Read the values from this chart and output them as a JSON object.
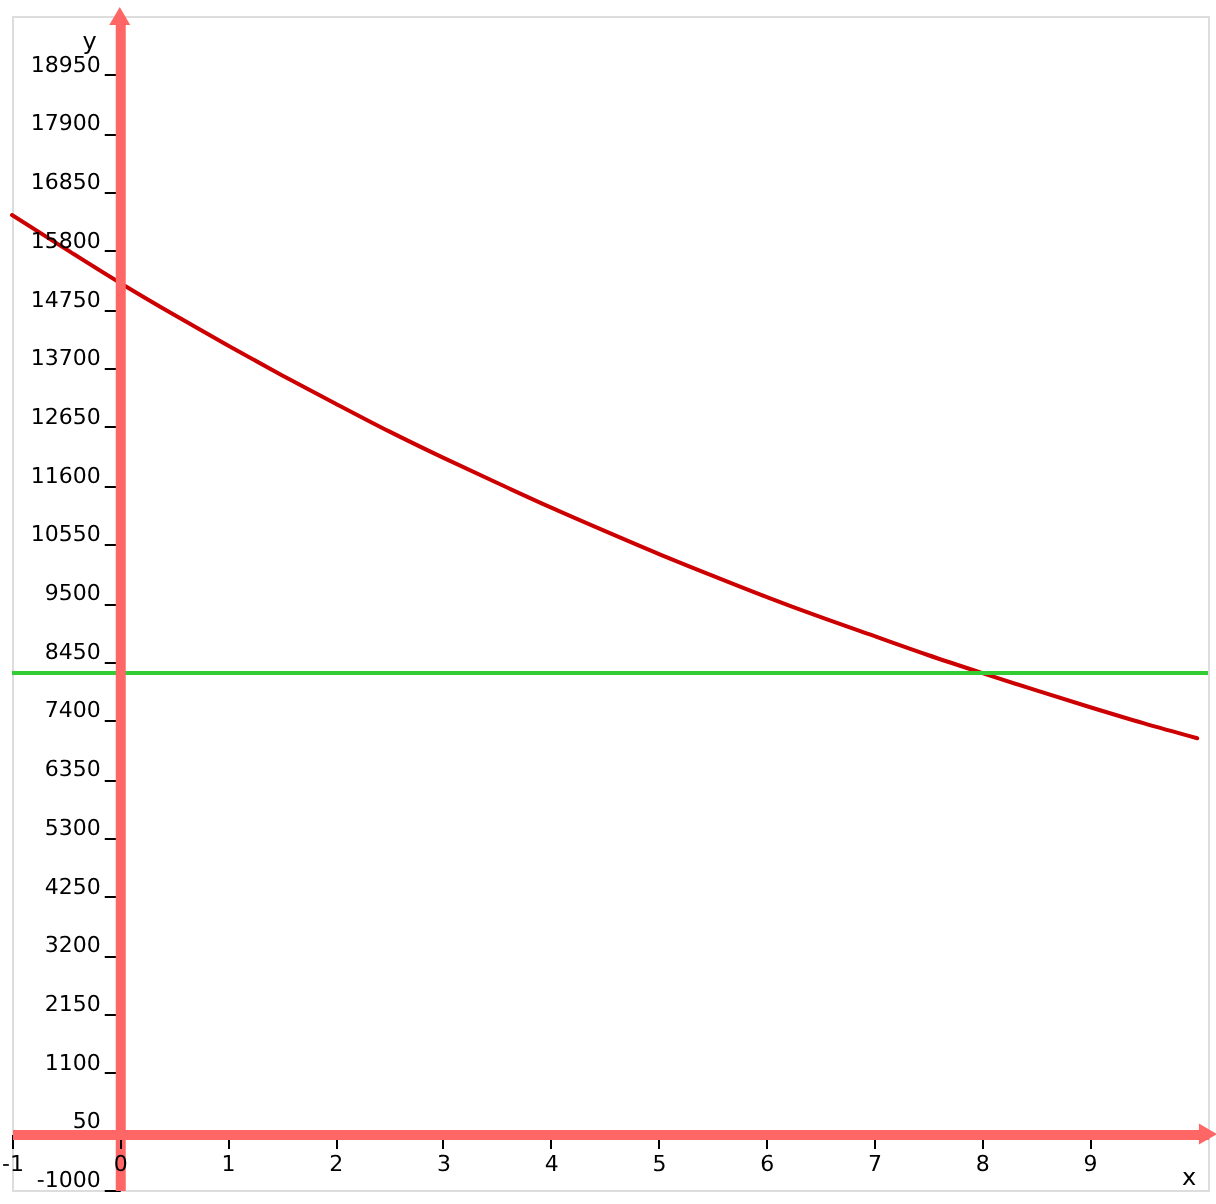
{
  "chart_data": {
    "type": "line",
    "xlabel": "x",
    "ylabel": "y",
    "series": [
      {
        "color": "#cc0000",
        "x": [
          -1,
          -0.5,
          0,
          0.5,
          1,
          1.5,
          2,
          2.5,
          3,
          3.5,
          4,
          4.5,
          5,
          5.5,
          6,
          6.5,
          7,
          7.5,
          8,
          8.5,
          9,
          9.5,
          10
        ],
        "values": [
          16440,
          15830,
          15230,
          14660,
          14110,
          13580,
          13070,
          12570,
          12100,
          11650,
          11210,
          10790,
          10380,
          9990,
          9610,
          9250,
          8910,
          8570,
          8250,
          7940,
          7640,
          7350,
          7080
        ]
      }
    ],
    "ref_lines": [
      {
        "axis": "y",
        "value": 8250,
        "color": "#33cc33"
      }
    ],
    "xlim": [
      -1,
      10.1
    ],
    "xticks": [
      -1,
      0,
      1,
      2,
      3,
      4,
      5,
      6,
      7,
      8,
      9
    ],
    "ylim": [
      -1000,
      20000
    ],
    "yticks": [
      -1000,
      50,
      1100,
      2150,
      3200,
      4250,
      5300,
      6350,
      7400,
      8450,
      9500,
      10550,
      11600,
      12650,
      13700,
      14750,
      15800,
      16850,
      17900,
      18950
    ],
    "line_style": "solid"
  }
}
